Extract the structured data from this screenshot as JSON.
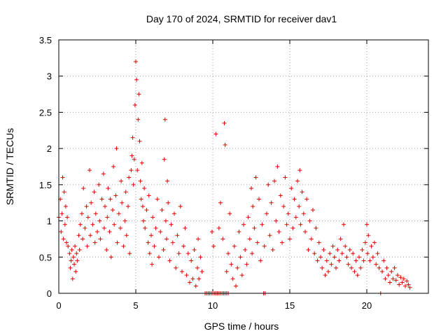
{
  "chart_data": {
    "type": "scatter",
    "title": "Day 170 of 2024, SRMTID for receiver dav1",
    "xlabel": "GPS time / hours",
    "ylabel": "SRMTID / TECUs",
    "xlim": [
      0,
      24
    ],
    "ylim": [
      0,
      3.5
    ],
    "grid": true,
    "marker": "+",
    "color": "#e00000",
    "xticks": [
      "0",
      "5",
      "10",
      "15",
      "20"
    ],
    "yticks": [
      "0",
      "0.5",
      "1",
      "1.5",
      "2",
      "2.5",
      "3",
      "3.5"
    ],
    "series": [
      {
        "name": "dav1",
        "points": [
          [
            0.0,
            1.05
          ],
          [
            0.1,
            1.3
          ],
          [
            0.15,
            0.85
          ],
          [
            0.2,
            1.1
          ],
          [
            0.25,
            1.6
          ],
          [
            0.3,
            0.75
          ],
          [
            0.35,
            1.4
          ],
          [
            0.4,
            0.95
          ],
          [
            0.45,
            1.2
          ],
          [
            0.5,
            0.7
          ],
          [
            0.55,
            1.05
          ],
          [
            0.6,
            0.65
          ],
          [
            0.7,
            0.55
          ],
          [
            0.75,
            0.35
          ],
          [
            0.8,
            0.45
          ],
          [
            0.85,
            0.6
          ],
          [
            0.9,
            0.2
          ],
          [
            0.95,
            0.5
          ],
          [
            1.0,
            0.4
          ],
          [
            1.05,
            0.65
          ],
          [
            1.1,
            0.3
          ],
          [
            1.15,
            0.55
          ],
          [
            1.2,
            0.45
          ],
          [
            1.3,
            0.8
          ],
          [
            1.35,
            0.6
          ],
          [
            1.4,
            0.95
          ],
          [
            1.5,
            1.1
          ],
          [
            1.55,
            0.75
          ],
          [
            1.6,
            1.45
          ],
          [
            1.7,
            0.9
          ],
          [
            1.8,
            1.2
          ],
          [
            1.85,
            0.65
          ],
          [
            1.9,
            1.05
          ],
          [
            2.0,
            1.7
          ],
          [
            2.05,
            0.8
          ],
          [
            2.1,
            1.25
          ],
          [
            2.2,
            0.95
          ],
          [
            2.3,
            1.4
          ],
          [
            2.35,
            0.7
          ],
          [
            2.4,
            1.1
          ],
          [
            2.5,
            0.85
          ],
          [
            2.6,
            1.5
          ],
          [
            2.65,
            1.0
          ],
          [
            2.7,
            0.75
          ],
          [
            2.8,
            1.3
          ],
          [
            2.9,
            1.65
          ],
          [
            2.95,
            0.9
          ],
          [
            3.0,
            1.2
          ],
          [
            3.1,
            0.6
          ],
          [
            3.15,
            1.05
          ],
          [
            3.2,
            1.45
          ],
          [
            3.3,
            0.85
          ],
          [
            3.35,
            1.3
          ],
          [
            3.4,
            0.5
          ],
          [
            3.5,
            1.15
          ],
          [
            3.55,
            1.75
          ],
          [
            3.6,
            0.95
          ],
          [
            3.7,
            1.35
          ],
          [
            3.75,
            2.0
          ],
          [
            3.8,
            0.7
          ],
          [
            3.9,
            1.1
          ],
          [
            4.0,
            0.9
          ],
          [
            4.05,
            1.55
          ],
          [
            4.1,
            1.25
          ],
          [
            4.2,
            0.65
          ],
          [
            4.3,
            1.0
          ],
          [
            4.35,
            1.4
          ],
          [
            4.4,
            0.8
          ],
          [
            4.5,
            1.2
          ],
          [
            4.55,
            1.6
          ],
          [
            4.6,
            0.55
          ],
          [
            4.7,
            1.7
          ],
          [
            4.75,
            1.9
          ],
          [
            4.8,
            2.15
          ],
          [
            4.85,
            1.5
          ],
          [
            4.9,
            1.85
          ],
          [
            4.95,
            2.6
          ],
          [
            5.0,
            3.2
          ],
          [
            5.05,
            2.95
          ],
          [
            5.1,
            1.7
          ],
          [
            5.15,
            2.4
          ],
          [
            5.2,
            2.75
          ],
          [
            5.25,
            2.1
          ],
          [
            5.3,
            1.55
          ],
          [
            5.35,
            1.3
          ],
          [
            5.4,
            1.8
          ],
          [
            5.45,
            1.2
          ],
          [
            5.5,
            1.0
          ],
          [
            5.55,
            1.45
          ],
          [
            5.6,
            0.9
          ],
          [
            5.7,
            1.15
          ],
          [
            5.8,
            0.7
          ],
          [
            5.85,
            1.35
          ],
          [
            5.9,
            0.55
          ],
          [
            6.0,
            0.8
          ],
          [
            6.05,
            0.4
          ],
          [
            6.1,
            1.05
          ],
          [
            6.2,
            0.65
          ],
          [
            6.3,
            0.9
          ],
          [
            6.4,
            1.3
          ],
          [
            6.5,
            0.5
          ],
          [
            6.6,
            0.85
          ],
          [
            6.7,
            1.15
          ],
          [
            6.8,
            0.6
          ],
          [
            6.85,
            1.85
          ],
          [
            6.9,
            2.4
          ],
          [
            6.95,
            1.0
          ],
          [
            7.0,
            0.75
          ],
          [
            7.05,
            1.55
          ],
          [
            7.1,
            1.25
          ],
          [
            7.2,
            0.45
          ],
          [
            7.3,
            0.95
          ],
          [
            7.4,
            0.7
          ],
          [
            7.5,
            1.1
          ],
          [
            7.6,
            0.35
          ],
          [
            7.7,
            0.8
          ],
          [
            7.8,
            0.55
          ],
          [
            7.9,
            1.2
          ],
          [
            8.0,
            0.3
          ],
          [
            8.1,
            0.65
          ],
          [
            8.2,
            0.9
          ],
          [
            8.3,
            0.25
          ],
          [
            8.4,
            0.55
          ],
          [
            8.5,
            0.15
          ],
          [
            8.6,
            0.45
          ],
          [
            8.7,
            0.2
          ],
          [
            8.8,
            0.6
          ],
          [
            8.9,
            0.1
          ],
          [
            9.0,
            0.35
          ],
          [
            9.05,
            0.75
          ],
          [
            9.1,
            0.2
          ],
          [
            9.2,
            0.5
          ],
          [
            9.3,
            0.3
          ],
          [
            9.5,
            0.0
          ],
          [
            9.6,
            0.0
          ],
          [
            9.7,
            0.0
          ],
          [
            9.8,
            0.0
          ],
          [
            9.9,
            0.0
          ],
          [
            10.0,
            0.0
          ],
          [
            10.1,
            0.0
          ],
          [
            10.2,
            0.0
          ],
          [
            10.3,
            0.0
          ],
          [
            10.4,
            0.0
          ],
          [
            10.5,
            0.0
          ],
          [
            10.6,
            0.0
          ],
          [
            10.7,
            0.0
          ],
          [
            10.8,
            0.0
          ],
          [
            10.9,
            0.0
          ],
          [
            11.0,
            0.0
          ],
          [
            9.95,
            0.85
          ],
          [
            10.05,
            0.65
          ],
          [
            10.2,
            2.2
          ],
          [
            10.4,
            0.9
          ],
          [
            10.5,
            1.25
          ],
          [
            10.65,
            0.75
          ],
          [
            10.75,
            2.35
          ],
          [
            10.8,
            2.05
          ],
          [
            10.9,
            0.3
          ],
          [
            11.0,
            0.55
          ],
          [
            11.1,
            1.1
          ],
          [
            11.2,
            0.4
          ],
          [
            11.3,
            0.2
          ],
          [
            11.4,
            0.65
          ],
          [
            11.5,
            0.1
          ],
          [
            11.6,
            0.35
          ],
          [
            11.7,
            0.85
          ],
          [
            11.8,
            0.5
          ],
          [
            11.9,
            0.25
          ],
          [
            12.0,
            0.95
          ],
          [
            12.1,
            0.6
          ],
          [
            12.2,
            0.4
          ],
          [
            12.3,
            1.05
          ],
          [
            12.4,
            0.75
          ],
          [
            12.5,
            1.45
          ],
          [
            12.55,
            0.55
          ],
          [
            12.6,
            1.2
          ],
          [
            12.7,
            0.9
          ],
          [
            12.8,
            1.6
          ],
          [
            12.9,
            0.7
          ],
          [
            13.0,
            1.3
          ],
          [
            13.1,
            0.45
          ],
          [
            13.2,
            0.95
          ],
          [
            13.3,
            0.0
          ],
          [
            13.4,
            0.0
          ],
          [
            13.35,
            0.65
          ],
          [
            13.5,
            1.1
          ],
          [
            13.6,
            1.5
          ],
          [
            13.7,
            0.8
          ],
          [
            13.8,
            1.25
          ],
          [
            13.9,
            0.6
          ],
          [
            14.0,
            1.55
          ],
          [
            14.1,
            1.0
          ],
          [
            14.2,
            1.75
          ],
          [
            14.3,
            0.85
          ],
          [
            14.4,
            1.35
          ],
          [
            14.5,
            0.7
          ],
          [
            14.6,
            1.2
          ],
          [
            14.7,
            1.6
          ],
          [
            14.8,
            0.95
          ],
          [
            14.9,
            1.1
          ],
          [
            15.0,
            0.75
          ],
          [
            15.1,
            1.45
          ],
          [
            15.2,
            0.9
          ],
          [
            15.3,
            1.3
          ],
          [
            15.4,
            1.05
          ],
          [
            15.5,
            1.55
          ],
          [
            15.6,
            1.2
          ],
          [
            15.65,
            1.7
          ],
          [
            15.7,
            0.95
          ],
          [
            15.8,
            1.4
          ],
          [
            15.9,
            1.1
          ],
          [
            16.0,
            0.85
          ],
          [
            16.1,
            1.3
          ],
          [
            16.2,
            0.6
          ],
          [
            16.3,
            1.0
          ],
          [
            16.4,
            0.75
          ],
          [
            16.5,
            1.15
          ],
          [
            16.6,
            0.55
          ],
          [
            16.7,
            0.9
          ],
          [
            16.8,
            0.45
          ],
          [
            16.9,
            0.7
          ],
          [
            17.0,
            0.5
          ],
          [
            17.1,
            0.35
          ],
          [
            17.2,
            0.6
          ],
          [
            17.3,
            0.25
          ],
          [
            17.4,
            0.45
          ],
          [
            17.5,
            0.3
          ],
          [
            17.6,
            0.55
          ],
          [
            17.7,
            0.4
          ],
          [
            17.8,
            0.65
          ],
          [
            17.9,
            0.5
          ],
          [
            18.0,
            0.35
          ],
          [
            18.1,
            0.6
          ],
          [
            18.2,
            0.45
          ],
          [
            18.3,
            0.75
          ],
          [
            18.4,
            0.55
          ],
          [
            18.5,
            0.95
          ],
          [
            18.6,
            0.65
          ],
          [
            18.7,
            0.5
          ],
          [
            18.8,
            0.4
          ],
          [
            18.9,
            0.6
          ],
          [
            19.0,
            0.35
          ],
          [
            19.1,
            0.55
          ],
          [
            19.2,
            0.3
          ],
          [
            19.3,
            0.45
          ],
          [
            19.4,
            0.25
          ],
          [
            19.5,
            0.5
          ],
          [
            19.6,
            0.35
          ],
          [
            19.7,
            0.6
          ],
          [
            19.8,
            0.45
          ],
          [
            19.9,
            0.7
          ],
          [
            20.0,
            0.95
          ],
          [
            20.05,
            0.55
          ],
          [
            20.1,
            0.8
          ],
          [
            20.2,
            0.45
          ],
          [
            20.3,
            0.65
          ],
          [
            20.4,
            0.5
          ],
          [
            20.5,
            0.7
          ],
          [
            20.6,
            0.4
          ],
          [
            20.7,
            0.55
          ],
          [
            20.8,
            0.35
          ],
          [
            20.9,
            0.0
          ],
          [
            21.0,
            0.3
          ],
          [
            21.1,
            0.45
          ],
          [
            21.2,
            0.2
          ],
          [
            21.3,
            0.35
          ],
          [
            21.4,
            0.25
          ],
          [
            21.5,
            0.15
          ],
          [
            21.6,
            0.3
          ],
          [
            21.7,
            0.2
          ],
          [
            21.8,
            0.35
          ],
          [
            21.9,
            0.18
          ],
          [
            22.0,
            0.25
          ],
          [
            22.1,
            0.12
          ],
          [
            22.2,
            0.22
          ],
          [
            22.3,
            0.15
          ],
          [
            22.4,
            0.2
          ],
          [
            22.5,
            0.1
          ],
          [
            22.6,
            0.17
          ],
          [
            22.7,
            0.12
          ],
          [
            22.8,
            0.08
          ]
        ]
      }
    ]
  }
}
